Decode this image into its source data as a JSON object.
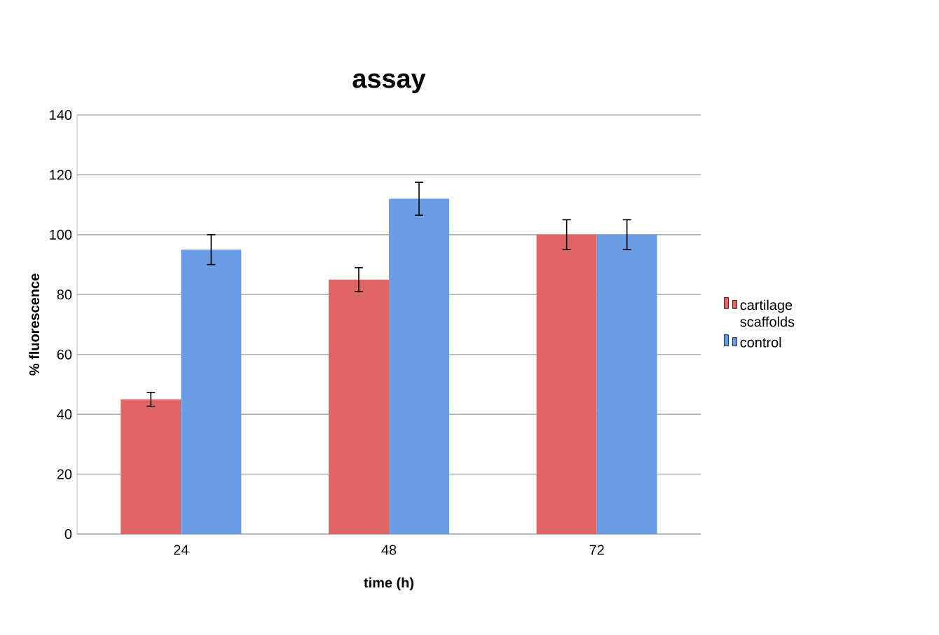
{
  "chart_data": {
    "type": "bar",
    "title": "assay",
    "xlabel": "time (h)",
    "ylabel": "% fluorescence",
    "categories": [
      "24",
      "48",
      "72"
    ],
    "series": [
      {
        "name": "cartilage scaffolds",
        "color": "#e06666",
        "values": [
          45,
          85,
          100
        ],
        "errors": [
          2.3,
          4,
          5
        ]
      },
      {
        "name": "control",
        "color": "#6a9de6",
        "values": [
          95,
          112,
          100
        ],
        "errors": [
          5,
          5.5,
          5
        ]
      }
    ],
    "ylim": [
      0,
      140
    ],
    "yticks": [
      0,
      20,
      40,
      60,
      80,
      100,
      120,
      140
    ],
    "grid": "y",
    "legend": "right"
  }
}
